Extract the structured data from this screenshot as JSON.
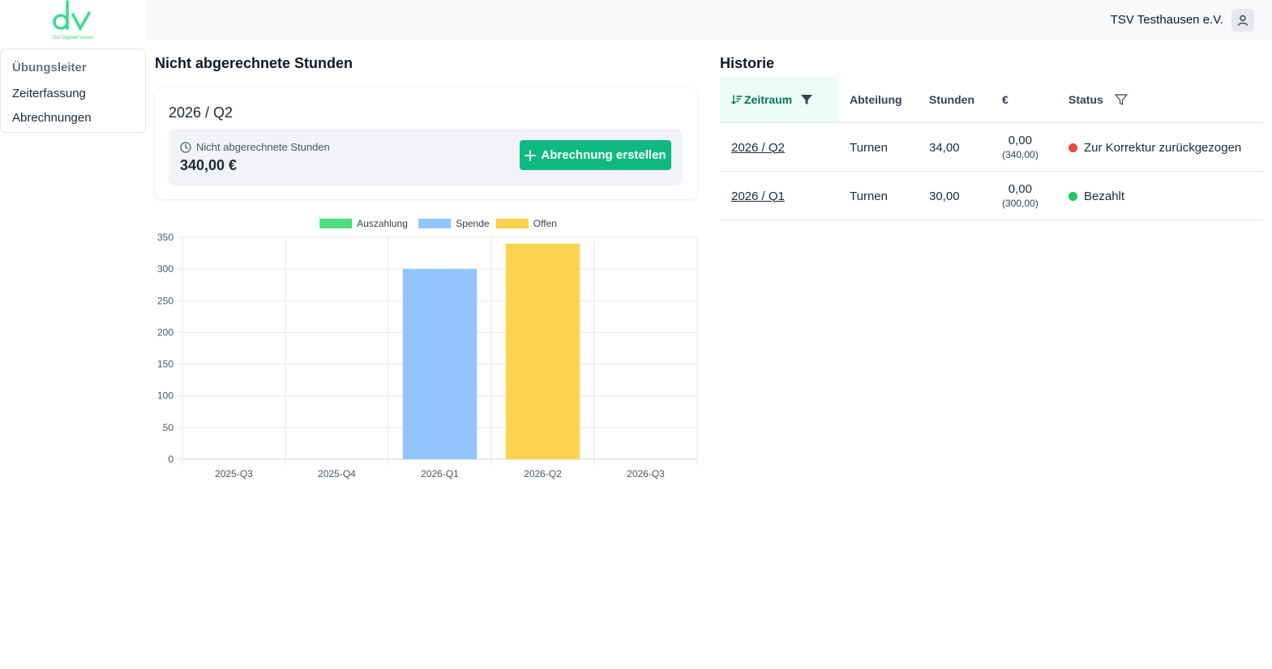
{
  "brand": {
    "logo_letters": "dv",
    "tagline": "Der Digitale Verein",
    "color": "#3bdc8a"
  },
  "header": {
    "org_name": "TSV Testhausen e.V.",
    "user_icon": "user-icon"
  },
  "sidebar": {
    "heading": "Übungsleiter",
    "items": [
      {
        "label": "Zeiterfassung"
      },
      {
        "label": "Abrechnungen"
      }
    ]
  },
  "unbilled": {
    "title": "Nicht abgerechnete Stunden",
    "period": "2026 / Q2",
    "label": "Nicht abgerechnete Stunden",
    "amount": "340,00 €",
    "create_button": "Abrechnung erstellen",
    "clock_icon": "clock-icon",
    "plus_icon": "plus-icon"
  },
  "chart_data": {
    "type": "bar",
    "categories": [
      "2025-Q3",
      "2025-Q4",
      "2026-Q1",
      "2026-Q2",
      "2026-Q3"
    ],
    "series": [
      {
        "name": "Auszahlung",
        "color": "#4ade80",
        "values": [
          0,
          0,
          0,
          0,
          0
        ]
      },
      {
        "name": "Spende",
        "color": "#93c5fd",
        "values": [
          0,
          0,
          300,
          0,
          0
        ]
      },
      {
        "name": "Offen",
        "color": "#fcd34d",
        "values": [
          0,
          0,
          0,
          340,
          0
        ]
      }
    ],
    "ylim": [
      0,
      350
    ],
    "yticks": [
      0,
      50,
      100,
      150,
      200,
      250,
      300,
      350
    ],
    "legend_position": "top-center",
    "grid": true
  },
  "history": {
    "title": "Historie",
    "columns": {
      "period": "Zeitraum",
      "department": "Abteilung",
      "hours": "Stunden",
      "amount": "€",
      "status": "Status"
    },
    "rows": [
      {
        "period": "2026 / Q2",
        "department": "Turnen",
        "hours": "34,00",
        "amount": "0,00",
        "amount_sub": "(340,00)",
        "status": "Zur Korrektur zurückgezogen",
        "status_color": "#ef4444"
      },
      {
        "period": "2026 / Q1",
        "department": "Turnen",
        "hours": "30,00",
        "amount": "0,00",
        "amount_sub": "(300,00)",
        "status": "Bezahlt",
        "status_color": "#22c55e"
      }
    ]
  }
}
